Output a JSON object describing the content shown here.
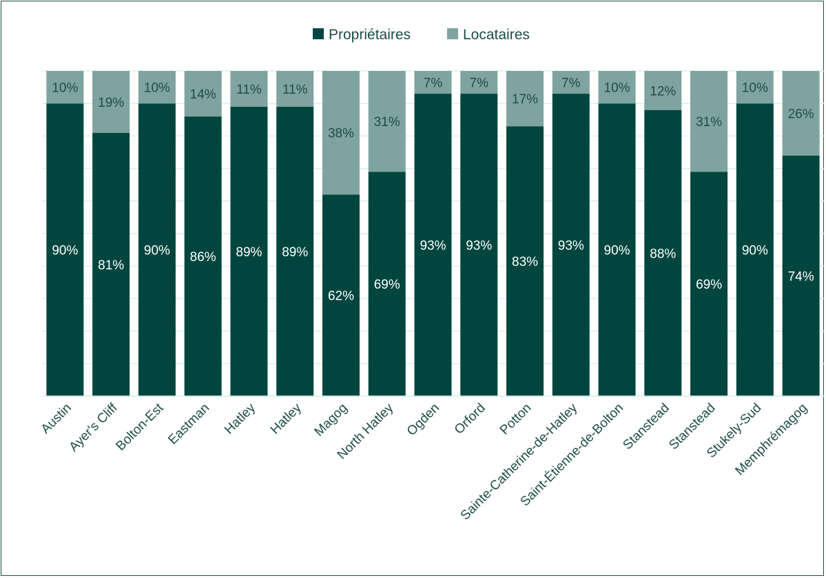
{
  "chart_data": {
    "type": "bar",
    "stacked": true,
    "categories": [
      "Austin",
      "Ayer's Cliff",
      "Bolton-Est",
      "Eastman",
      "Hatley",
      "Hatley",
      "Magog",
      "North Hatley",
      "Ogden",
      "Orford",
      "Potton",
      "Sainte-Catherine-de-Hatley",
      "Saint-Étienne-de-Bolton",
      "Stanstead",
      "Stanstead",
      "Stukely-Sud",
      "Memphrémagog"
    ],
    "series": [
      {
        "name": "Propriétaires",
        "color": "#00463f",
        "values": [
          90,
          81,
          90,
          86,
          89,
          89,
          62,
          69,
          93,
          93,
          83,
          93,
          90,
          88,
          69,
          90,
          74
        ],
        "labels": [
          "90%",
          "81%",
          "90%",
          "86%",
          "89%",
          "89%",
          "62%",
          "69%",
          "93%",
          "93%",
          "83%",
          "93%",
          "90%",
          "88%",
          "69%",
          "90%",
          "74%"
        ]
      },
      {
        "name": "Locataires",
        "color": "#7fa39e",
        "values": [
          10,
          19,
          10,
          14,
          11,
          11,
          38,
          31,
          7,
          7,
          17,
          7,
          10,
          12,
          31,
          10,
          26
        ],
        "labels": [
          "10%",
          "19%",
          "10%",
          "14%",
          "11%",
          "11%",
          "38%",
          "31%",
          "7%",
          "7%",
          "17%",
          "7%",
          "10%",
          "12%",
          "31%",
          "10%",
          "26%"
        ]
      }
    ],
    "ylim": [
      0,
      100
    ],
    "grid": true,
    "legend": "top-center",
    "title": "",
    "xlabel": "",
    "ylabel": ""
  }
}
